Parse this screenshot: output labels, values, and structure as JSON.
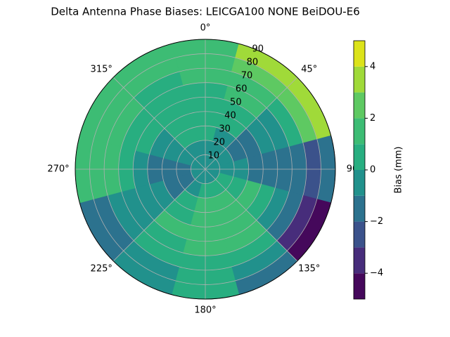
{
  "chart_data": {
    "type": "polar-contour",
    "title": "Delta Antenna Phase Biases: LEICGA100       NONE BeiDOU-E6",
    "colorbar_label": "Bias (mm)",
    "azimuth": [
      0,
      30,
      60,
      90,
      120,
      150,
      180,
      210,
      240,
      270,
      300,
      330
    ],
    "zenith": [
      5,
      15,
      25,
      35,
      45,
      55,
      65,
      75,
      85
    ],
    "values": [
      [
        -0.5,
        -0.5,
        -0.5,
        -0.5,
        -0.5,
        -0.5,
        -0.5,
        -0.5,
        -0.5,
        -0.5,
        -0.5,
        -0.5
      ],
      [
        -0.3,
        -0.5,
        -0.8,
        -0.5,
        0.2,
        0.5,
        0.3,
        -0.3,
        -1.2,
        -1.3,
        -0.8,
        -0.4
      ],
      [
        0.3,
        -0.5,
        -1.2,
        -1,
        0.8,
        1.5,
        1.3,
        0.3,
        -1.5,
        -1.8,
        -1,
        0.2
      ],
      [
        0.5,
        0,
        -1.3,
        -1.3,
        1,
        1.8,
        1.8,
        0.6,
        -0.8,
        -1.5,
        -0.6,
        0.4
      ],
      [
        0.6,
        0.5,
        -1,
        -1.2,
        0.5,
        1.8,
        1.8,
        1,
        -0.2,
        -0.8,
        0.2,
        0.5
      ],
      [
        0.8,
        1.2,
        -0.5,
        -1.5,
        -0.5,
        1.3,
        1.5,
        0.8,
        -0.3,
        0.3,
        0.8,
        0.6
      ],
      [
        1.2,
        1.8,
        0.5,
        -2,
        -1.5,
        0.5,
        0.8,
        0.2,
        -0.8,
        1.2,
        1.3,
        0.8
      ],
      [
        1.5,
        2.5,
        2,
        -2.5,
        -3.5,
        -1,
        0.3,
        -0.8,
        -1.3,
        1.8,
        1.8,
        1.2
      ],
      [
        1.2,
        3.5,
        3.5,
        -1.5,
        -4.5,
        -2,
        0.2,
        -0.5,
        -1.5,
        1,
        1.5,
        1.5
      ]
    ],
    "levels": [
      -5,
      -4,
      -3,
      -2,
      -1,
      0,
      1,
      2,
      3,
      4,
      5
    ],
    "colors": [
      "#45085b",
      "#472d7b",
      "#3b528b",
      "#2c728e",
      "#21918c",
      "#28ae80",
      "#3dbc74",
      "#5ec962",
      "#a0da39",
      "#dce31a"
    ],
    "rlim": [
      0,
      90
    ],
    "rticks": [
      10,
      20,
      30,
      40,
      50,
      60,
      70,
      80,
      90
    ],
    "thetaticks": [
      {
        "value": 0,
        "label": "0°"
      },
      {
        "value": 45,
        "label": "45°"
      },
      {
        "value": 90,
        "label": "90"
      },
      {
        "value": 135,
        "label": "135°"
      },
      {
        "value": 180,
        "label": "180°"
      },
      {
        "value": 225,
        "label": "225°"
      },
      {
        "value": 270,
        "label": "270°"
      },
      {
        "value": 315,
        "label": "315°"
      }
    ],
    "clim": [
      -5,
      5
    ],
    "cticks": [
      {
        "value": -4,
        "label": "−4"
      },
      {
        "value": -2,
        "label": "−2"
      },
      0,
      2,
      4
    ],
    "grid": true
  }
}
